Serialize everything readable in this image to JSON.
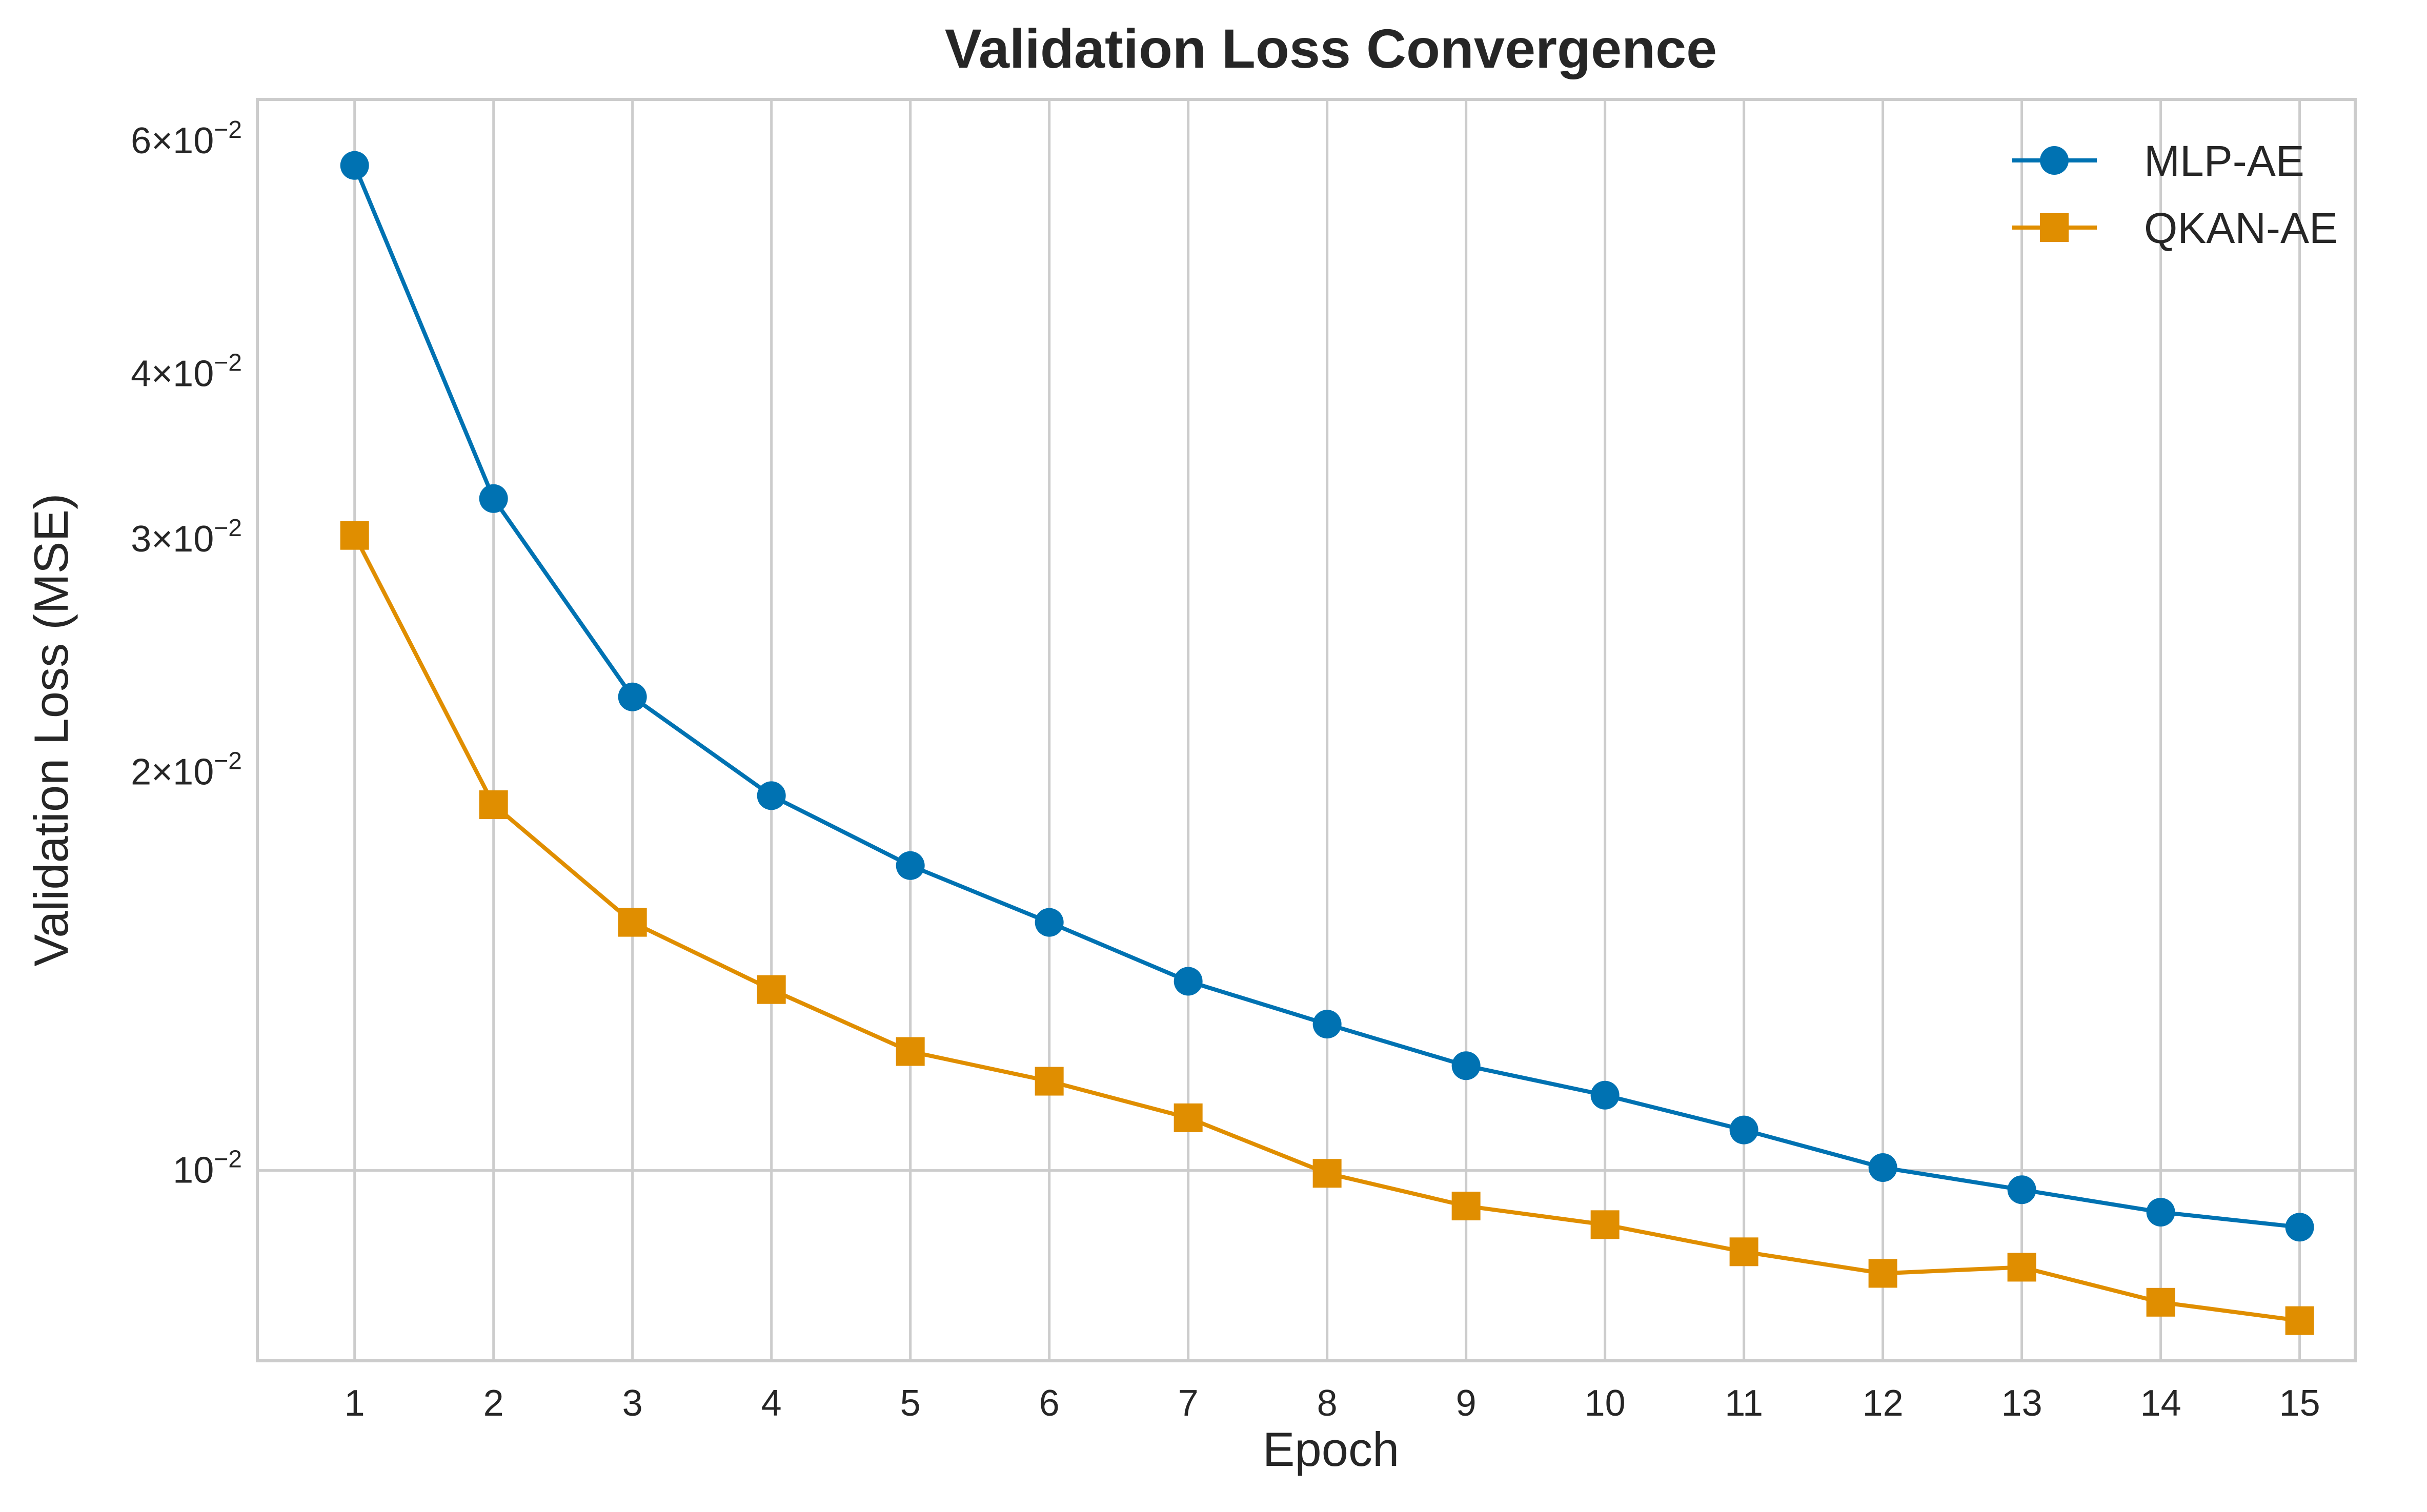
{
  "chart_data": {
    "type": "line",
    "title": "Validation Loss Convergence",
    "xlabel": "Epoch",
    "ylabel": "Validation Loss (MSE)",
    "x": [
      1,
      2,
      3,
      4,
      5,
      6,
      7,
      8,
      9,
      10,
      11,
      12,
      13,
      14,
      15
    ],
    "x_ticks": [
      "1",
      "2",
      "3",
      "4",
      "5",
      "6",
      "7",
      "8",
      "9",
      "10",
      "11",
      "12",
      "13",
      "14",
      "15"
    ],
    "xlim": [
      0.3,
      15.4
    ],
    "yscale": "log",
    "ylim": [
      0.00718,
      0.0645
    ],
    "y_ticks": [
      {
        "value": 0.06,
        "mantissa": "6",
        "times": "×",
        "base": "10",
        "exponent": "−2"
      },
      {
        "value": 0.04,
        "mantissa": "4",
        "times": "×",
        "base": "10",
        "exponent": "−2"
      },
      {
        "value": 0.03,
        "mantissa": "3",
        "times": "×",
        "base": "10",
        "exponent": "−2"
      },
      {
        "value": 0.02,
        "mantissa": "2",
        "times": "×",
        "base": "10",
        "exponent": "−2"
      },
      {
        "value": 0.01,
        "mantissa": "",
        "times": "",
        "base": "10",
        "exponent": "−2"
      }
    ],
    "grid": true,
    "legend_position": "top-right",
    "series": [
      {
        "name": "MLP-AE",
        "color": "#0072B2",
        "marker": "circle",
        "values": [
          0.0575,
          0.0322,
          0.0228,
          0.0192,
          0.017,
          0.0154,
          0.0139,
          0.0129,
          0.012,
          0.0114,
          0.01073,
          0.01005,
          0.00967,
          0.0093,
          0.00906
        ]
      },
      {
        "name": "QKAN-AE",
        "color": "#E08E00",
        "marker": "square",
        "values": [
          0.0302,
          0.0189,
          0.0154,
          0.0137,
          0.0123,
          0.01168,
          0.01096,
          0.00995,
          0.0094,
          0.0091,
          0.00868,
          0.00836,
          0.00845,
          0.00795,
          0.0077
        ]
      }
    ]
  }
}
